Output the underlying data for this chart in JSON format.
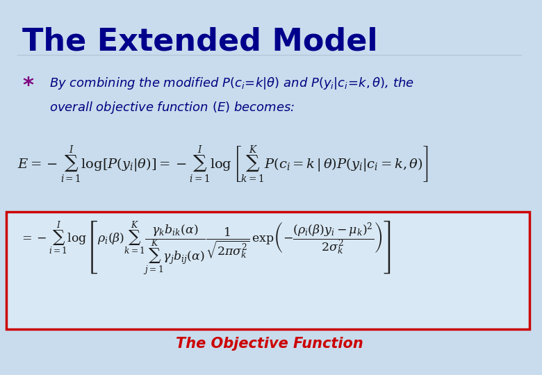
{
  "background_color": "#cfe0f0",
  "title": "The Extended Model",
  "title_color": "#00008B",
  "title_fontsize": 32,
  "bullet_color": "#800080",
  "text_color": "#000080",
  "highlight_color": "#cc0000",
  "body_text": "By combining the modified $P(c_i{=}k|\\theta)$ and $P(y_i|c_i{=}k,\\theta)$, the\noverall objective function $(E)$ becomes:",
  "eq1": "$E = -\\displaystyle\\sum_{i=1}^{I} \\log[P(y_i|\\theta)] = -\\displaystyle\\sum_{i=1}^{I} \\log\\left[\\displaystyle\\sum_{k=1}^{K} P(c_i = k\\,|\\,\\theta)P(y_i|c_i = k,\\theta)\\right]$",
  "eq2": "$= -\\displaystyle\\sum_{i=1}^{I} \\log\\left[\\rho_i(\\beta)\\displaystyle\\sum_{k=1}^{K} \\dfrac{\\gamma_k b_{ik}(\\alpha)}{\\displaystyle\\sum_{j=1}^{K} \\gamma_j b_{ij}(\\alpha)} \\dfrac{1}{\\sqrt{2\\pi\\sigma_k^2}} \\exp\\!\\left(-\\dfrac{(\\rho_i(\\beta)y_i - \\mu_k)^2}{2\\sigma_k^2}\\right)\\right]$",
  "label": "The Objective Function",
  "label_color": "#cc0000",
  "box_color": "#cc0000",
  "figsize": [
    7.8,
    5.4
  ],
  "dpi": 100
}
